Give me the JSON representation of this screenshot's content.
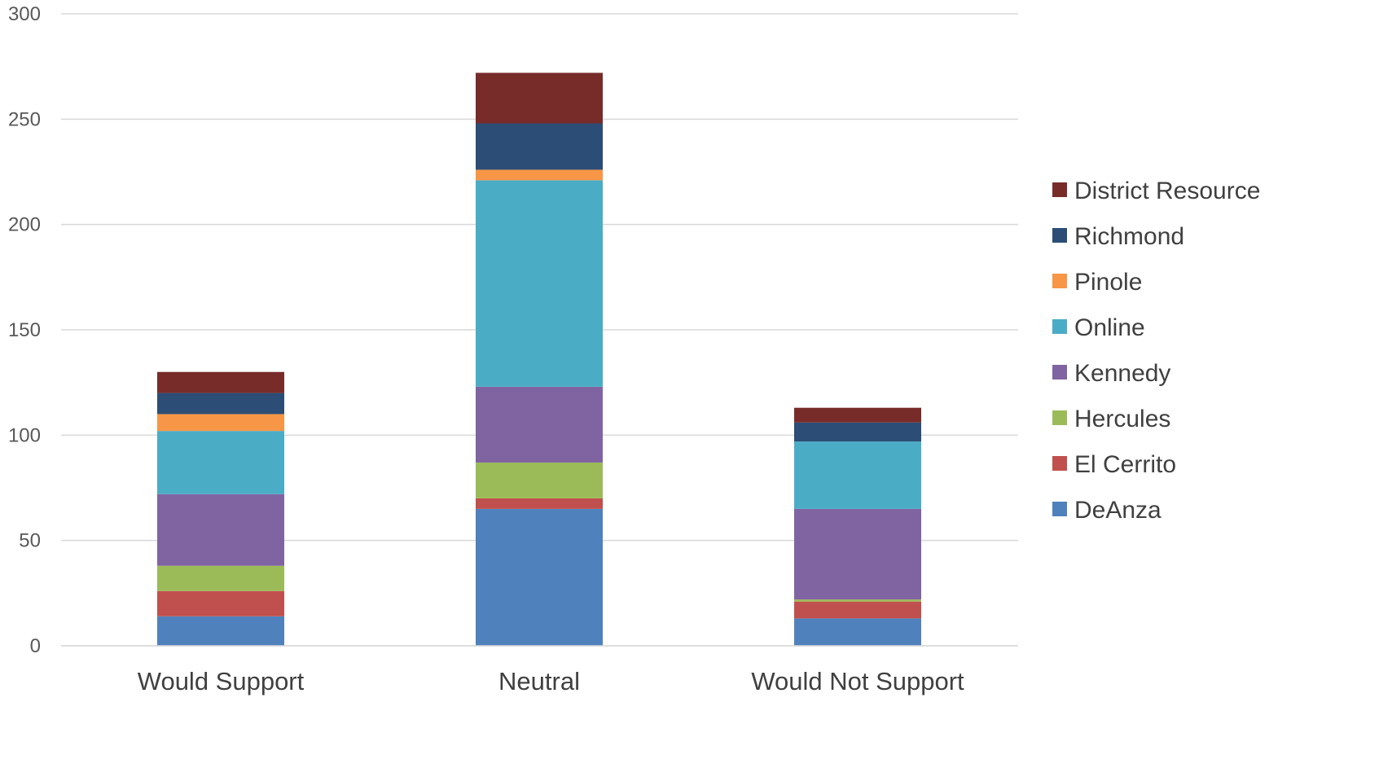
{
  "chart_data": {
    "type": "bar",
    "stacked": true,
    "categories": [
      "Would Support",
      "Neutral",
      "Would Not Support"
    ],
    "series": [
      {
        "name": "DeAnza",
        "color": "#4F81BD",
        "values": [
          14,
          65,
          13
        ]
      },
      {
        "name": "El Cerrito",
        "color": "#C0504D",
        "values": [
          12,
          5,
          8
        ]
      },
      {
        "name": "Hercules",
        "color": "#9BBB59",
        "values": [
          12,
          17,
          1
        ]
      },
      {
        "name": "Kennedy",
        "color": "#8064A2",
        "values": [
          34,
          36,
          43
        ]
      },
      {
        "name": "Online",
        "color": "#4BACC6",
        "values": [
          30,
          98,
          32
        ]
      },
      {
        "name": "Pinole",
        "color": "#F79646",
        "values": [
          8,
          5,
          0
        ]
      },
      {
        "name": "Richmond",
        "color": "#2C4D75",
        "values": [
          10,
          22,
          9
        ]
      },
      {
        "name": "District Resource",
        "color": "#772C2A",
        "values": [
          10,
          24,
          7
        ]
      }
    ],
    "ylim": [
      0,
      300
    ],
    "yticks": [
      0,
      50,
      100,
      150,
      200,
      250,
      300
    ],
    "title": "",
    "xlabel": "",
    "ylabel": "",
    "grid": true,
    "legend_position": "right"
  }
}
